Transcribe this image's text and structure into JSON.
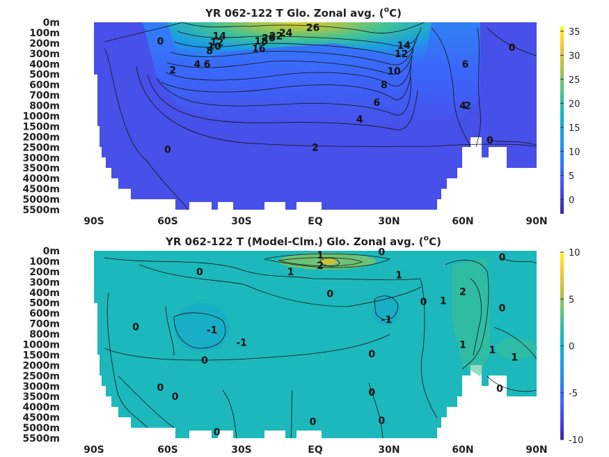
{
  "chart_data": [
    {
      "type": "heatmap",
      "title": "YR 062-122 T Glo. Zonal avg. (",
      "title_unit_sup": "o",
      "title_unit_end": "C)",
      "x_ticks": [
        "90S",
        "60S",
        "30S",
        "EQ",
        "30N",
        "60N",
        "90N"
      ],
      "x_values": [
        -90,
        -60,
        -30,
        0,
        30,
        60,
        90
      ],
      "y_ticks": [
        "0m",
        "100m",
        "200m",
        "300m",
        "400m",
        "500m",
        "600m",
        "700m",
        "800m",
        "1000m",
        "1500m",
        "2000m",
        "2500m",
        "3000m",
        "3500m",
        "4000m",
        "4500m",
        "5000m",
        "5500m"
      ],
      "colorbar_ticks": [
        "35",
        "30",
        "25",
        "20",
        "15",
        "10",
        "5",
        "0"
      ],
      "colorbar_values": [
        35,
        30,
        25,
        20,
        15,
        10,
        5,
        0
      ],
      "clim": [
        -3,
        36
      ],
      "colormap": "parula",
      "contour_labels": [
        {
          "text": "26",
          "lat": -1,
          "depth_index": 0.5
        },
        {
          "text": "24",
          "lat": -12,
          "depth_index": 1
        },
        {
          "text": "22",
          "lat": -16,
          "depth_index": 1.3
        },
        {
          "text": "20",
          "lat": -19,
          "depth_index": 1.5
        },
        {
          "text": "18",
          "lat": -22,
          "depth_index": 1.8
        },
        {
          "text": "16",
          "lat": -23,
          "depth_index": 2.5
        },
        {
          "text": "14",
          "lat": -39,
          "depth_index": 1.3
        },
        {
          "text": "12",
          "lat": -40,
          "depth_index": 1.9
        },
        {
          "text": "10",
          "lat": -41,
          "depth_index": 2.3
        },
        {
          "text": "8",
          "lat": -43,
          "depth_index": 2.7
        },
        {
          "text": "6",
          "lat": -44,
          "depth_index": 4
        },
        {
          "text": "4",
          "lat": -48,
          "depth_index": 4
        },
        {
          "text": "2",
          "lat": -58,
          "depth_index": 4.6
        },
        {
          "text": "0",
          "lat": -63,
          "depth_index": 1.8
        },
        {
          "text": "14",
          "lat": 36,
          "depth_index": 2.2
        },
        {
          "text": "12",
          "lat": 35,
          "depth_index": 3
        },
        {
          "text": "10",
          "lat": 32,
          "depth_index": 4.7
        },
        {
          "text": "8",
          "lat": 28,
          "depth_index": 6
        },
        {
          "text": "6",
          "lat": 25,
          "depth_index": 7.7
        },
        {
          "text": "4",
          "lat": 18,
          "depth_index": 9.3
        },
        {
          "text": "2",
          "lat": 0,
          "depth_index": 12
        },
        {
          "text": "0",
          "lat": -60,
          "depth_index": 12.2
        },
        {
          "text": "6",
          "lat": 61,
          "depth_index": 4
        },
        {
          "text": "4",
          "lat": 60,
          "depth_index": 8
        },
        {
          "text": "2",
          "lat": 62,
          "depth_index": 8
        },
        {
          "text": "0",
          "lat": 71,
          "depth_index": 11.3
        },
        {
          "text": "0",
          "lat": 80,
          "depth_index": 2.4
        }
      ]
    },
    {
      "type": "heatmap",
      "title": "YR 062-122 T (Model-Clm.) Glo. Zonal avg. (",
      "title_unit_sup": "o",
      "title_unit_end": "C)",
      "x_ticks": [
        "90S",
        "60S",
        "30S",
        "EQ",
        "30N",
        "60N",
        "90N"
      ],
      "x_values": [
        -90,
        -60,
        -30,
        0,
        30,
        60,
        90
      ],
      "y_ticks": [
        "0m",
        "100m",
        "200m",
        "300m",
        "400m",
        "500m",
        "600m",
        "700m",
        "800m",
        "1000m",
        "1500m",
        "2000m",
        "2500m",
        "3000m",
        "3500m",
        "4000m",
        "4500m",
        "5000m",
        "5500m"
      ],
      "colorbar_ticks": [
        "10",
        "5",
        "0",
        "-5",
        "-10"
      ],
      "colorbar_values": [
        10,
        5,
        0,
        -5,
        -10
      ],
      "clim": [
        -10,
        10
      ],
      "colormap": "parula",
      "contour_labels": [
        {
          "text": "1",
          "lat": 2,
          "depth_index": 0.4
        },
        {
          "text": "0",
          "lat": 27,
          "depth_index": 0.1
        },
        {
          "text": "2",
          "lat": 2,
          "depth_index": 1.4
        },
        {
          "text": "1",
          "lat": -10,
          "depth_index": 2
        },
        {
          "text": "1",
          "lat": 34,
          "depth_index": 2.3
        },
        {
          "text": "0",
          "lat": -47,
          "depth_index": 2
        },
        {
          "text": "0",
          "lat": 6,
          "depth_index": 4.1
        },
        {
          "text": "0",
          "lat": 44,
          "depth_index": 4.9
        },
        {
          "text": "1",
          "lat": 52,
          "depth_index": 4.8
        },
        {
          "text": "2",
          "lat": 60,
          "depth_index": 3.9
        },
        {
          "text": "0",
          "lat": 76,
          "depth_index": 0.6
        },
        {
          "text": "0",
          "lat": 76,
          "depth_index": 5.5
        },
        {
          "text": "-1",
          "lat": 29,
          "depth_index": 6.6
        },
        {
          "text": "-1",
          "lat": -42,
          "depth_index": 7.6
        },
        {
          "text": "-1",
          "lat": -30,
          "depth_index": 8.8
        },
        {
          "text": "0",
          "lat": -73,
          "depth_index": 7.3
        },
        {
          "text": "0",
          "lat": -45,
          "depth_index": 10.5
        },
        {
          "text": "0",
          "lat": 23,
          "depth_index": 9.9
        },
        {
          "text": "1",
          "lat": 60,
          "depth_index": 9
        },
        {
          "text": "1",
          "lat": 72,
          "depth_index": 9.5
        },
        {
          "text": "1",
          "lat": 81,
          "depth_index": 10.2
        },
        {
          "text": "0",
          "lat": -63,
          "depth_index": 13.1
        },
        {
          "text": "0",
          "lat": -57,
          "depth_index": 14
        },
        {
          "text": "0",
          "lat": 23,
          "depth_index": 13.6
        },
        {
          "text": "0",
          "lat": 75,
          "depth_index": 13.2
        },
        {
          "text": "0",
          "lat": -1,
          "depth_index": 16.4
        },
        {
          "text": "0",
          "lat": 27,
          "depth_index": 16.3
        },
        {
          "text": "0",
          "lat": -40,
          "depth_index": 17.4
        }
      ]
    }
  ]
}
